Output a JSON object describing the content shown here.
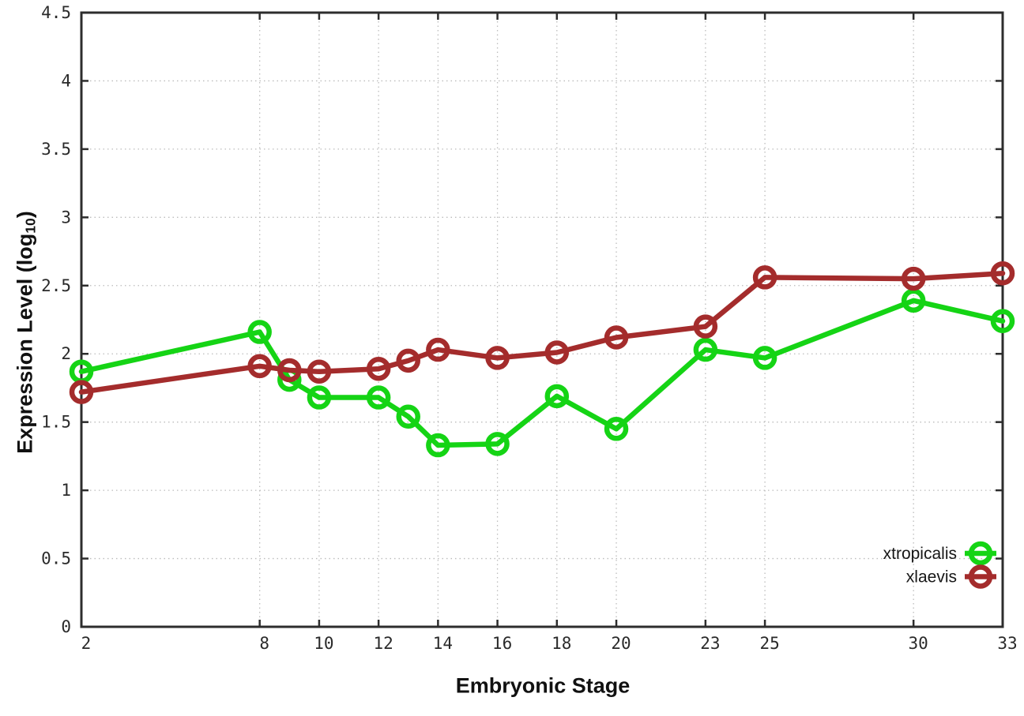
{
  "chart_data": {
    "type": "line",
    "title": "",
    "xlabel": "Embryonic Stage",
    "ylabel": "Expression Level (log10)",
    "ylabel_parts": {
      "prefix": "Expression Level (log",
      "sub": "10",
      "suffix": ")"
    },
    "x": [
      2,
      8,
      9,
      10,
      12,
      13,
      14,
      16,
      18,
      20,
      23,
      25,
      30,
      33
    ],
    "series": [
      {
        "name": "xtropicalis",
        "color": "#15d415",
        "values": [
          1.87,
          2.16,
          1.81,
          1.68,
          1.68,
          1.54,
          1.33,
          1.34,
          1.69,
          1.45,
          2.03,
          1.97,
          2.39,
          2.24
        ]
      },
      {
        "name": "xlaevis",
        "color": "#a42c2c",
        "values": [
          1.72,
          1.91,
          1.88,
          1.87,
          1.89,
          1.95,
          2.03,
          1.97,
          2.01,
          2.12,
          2.2,
          2.56,
          2.55,
          2.59
        ]
      }
    ],
    "xticks": [
      2,
      8,
      10,
      12,
      14,
      16,
      18,
      20,
      23,
      25,
      30,
      33
    ],
    "yticks": [
      0,
      0.5,
      1,
      1.5,
      2,
      2.5,
      3,
      3.5,
      4,
      4.5
    ],
    "xlim": [
      2,
      33
    ],
    "ylim": [
      0,
      4.5
    ],
    "grid": true,
    "marker": "open-circle",
    "legend_position": "inside-bottom-right",
    "colors": {
      "grid": "#bcbcbc",
      "border": "#2d2d2d",
      "tick_text": "#2a2a2a"
    }
  }
}
